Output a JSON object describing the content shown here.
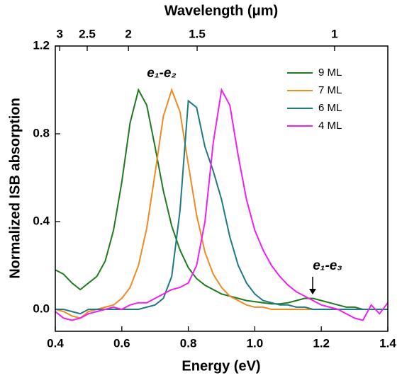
{
  "chart_data": {
    "type": "line",
    "x_label": "Energy (eV)",
    "y_label": "Normalized ISB absorption",
    "x2_label": "Wavelength (μm)",
    "x": [
      0.4,
      0.425,
      0.45,
      0.475,
      0.5,
      0.525,
      0.55,
      0.575,
      0.6,
      0.625,
      0.65,
      0.675,
      0.7,
      0.725,
      0.75,
      0.775,
      0.8,
      0.825,
      0.85,
      0.875,
      0.9,
      0.925,
      0.95,
      0.975,
      1.0,
      1.025,
      1.05,
      1.075,
      1.1,
      1.125,
      1.15,
      1.175,
      1.2,
      1.225,
      1.25,
      1.275,
      1.3,
      1.325,
      1.35,
      1.375,
      1.4
    ],
    "series": [
      {
        "name": "9 ML",
        "color": "#1f7a1f",
        "values": [
          0.18,
          0.16,
          0.12,
          0.09,
          0.12,
          0.15,
          0.22,
          0.36,
          0.58,
          0.85,
          1.0,
          0.93,
          0.74,
          0.54,
          0.38,
          0.27,
          0.19,
          0.14,
          0.11,
          0.09,
          0.07,
          0.06,
          0.05,
          0.04,
          0.035,
          0.03,
          0.025,
          0.025,
          0.03,
          0.04,
          0.05,
          0.05,
          0.04,
          0.03,
          0.02,
          0.01,
          0.01,
          0.0,
          0.0,
          0.0,
          0.0
        ]
      },
      {
        "name": "7 ML",
        "color": "#f08a24",
        "values": [
          0.0,
          -0.01,
          -0.03,
          -0.04,
          -0.01,
          0.0,
          0.01,
          0.02,
          0.05,
          0.1,
          0.2,
          0.37,
          0.62,
          0.88,
          1.0,
          0.9,
          0.66,
          0.43,
          0.26,
          0.16,
          0.1,
          0.06,
          0.04,
          0.02,
          0.01,
          0.01,
          0.0,
          0.0,
          0.0,
          0.0,
          0.0,
          0.0,
          0.0,
          0.0,
          0.0,
          0.0,
          0.0,
          0.0,
          0.0,
          0.0,
          0.0
        ]
      },
      {
        "name": "6 ML",
        "color": "#1f7a80",
        "values": [
          0.0,
          0.0,
          -0.01,
          -0.02,
          0.0,
          0.0,
          0.0,
          0.0,
          0.0,
          0.0,
          0.0,
          0.01,
          0.02,
          0.05,
          0.15,
          0.45,
          0.95,
          0.92,
          0.74,
          0.63,
          0.5,
          0.33,
          0.2,
          0.12,
          0.07,
          0.04,
          0.03,
          0.02,
          0.02,
          0.01,
          0.01,
          0.0,
          0.0,
          0.0,
          0.0,
          0.0,
          0.0,
          0.0,
          0.0,
          0.0,
          0.0
        ]
      },
      {
        "name": "4 ML",
        "color": "#f020f0",
        "values": [
          -0.01,
          -0.04,
          -0.05,
          -0.04,
          -0.02,
          -0.01,
          0.0,
          0.01,
          0.0,
          0.02,
          0.03,
          0.03,
          0.05,
          0.07,
          0.09,
          0.1,
          0.12,
          0.2,
          0.4,
          0.76,
          1.0,
          0.93,
          0.7,
          0.5,
          0.36,
          0.27,
          0.2,
          0.15,
          0.11,
          0.08,
          0.06,
          0.04,
          0.02,
          0.01,
          0.0,
          -0.02,
          -0.04,
          -0.05,
          0.02,
          -0.02,
          0.03
        ]
      }
    ],
    "xlim": [
      0.4,
      1.4
    ],
    "xticks": [
      0.4,
      0.6,
      0.8,
      {
        "value": 1,
        "label": "1.0"
      },
      1.2,
      1.4
    ],
    "ylim": [
      -0.1,
      1.2
    ],
    "yticks": [
      {
        "value": 0,
        "label": "0.0"
      },
      0.4,
      0.8,
      1.2
    ],
    "x2lim": [
      3.0995,
      0.8856
    ],
    "x2scale": "reciprocal",
    "x2ticks": [
      3,
      2.5,
      2,
      1.5,
      1
    ],
    "annotations": [
      "e₁-e₂",
      "e₁-e₃"
    ],
    "legend": "upper right"
  }
}
